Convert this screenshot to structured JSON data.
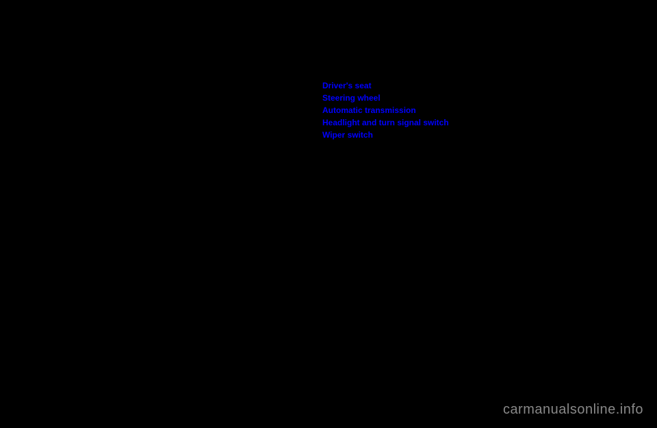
{
  "links": [
    {
      "label": "Driver's seat"
    },
    {
      "label": "Steering wheel"
    },
    {
      "label": "Automatic transmission"
    },
    {
      "label": "Headlight and turn signal switch"
    },
    {
      "label": "Wiper switch"
    }
  ],
  "watermark": "carmanualsonline.info",
  "colors": {
    "background": "#000000",
    "link": "#0000ff",
    "watermark": "#888888"
  }
}
